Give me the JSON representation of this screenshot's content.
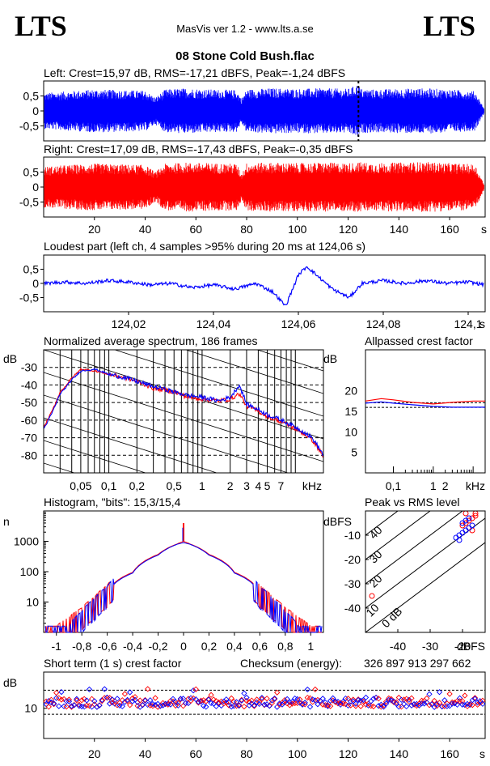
{
  "header": {
    "logo_left": "LTS",
    "logo_right": "LTS",
    "app_title": "MasVis ver 1.2 - www.lts.a.se",
    "file_name": "08 Stone Cold Bush.flac"
  },
  "colors": {
    "left": "#0000ff",
    "right": "#ff0000"
  },
  "chart_data": [
    {
      "type": "line",
      "id": "waveform-left",
      "title": "Left: Crest=15,97 dB, RMS=-17,21 dBFS, Peak=-1,24 dBFS",
      "ytick_labels": [
        "0,5",
        "0",
        "-0,5"
      ],
      "yticks": [
        0.5,
        0,
        -0.5
      ],
      "ylim": [
        -1,
        1
      ],
      "xlim": [
        0,
        174
      ],
      "peak_marker_s": 124.06,
      "envelope": {
        "x": [
          0,
          10,
          20,
          30,
          40,
          44,
          48,
          52,
          56,
          66,
          76,
          78,
          80,
          90,
          100,
          110,
          120,
          124,
          125,
          130,
          140,
          150,
          160,
          170,
          174
        ],
        "amp": [
          0.6,
          0.66,
          0.72,
          0.7,
          0.68,
          0.45,
          0.72,
          0.74,
          0.76,
          0.72,
          0.7,
          0.42,
          0.72,
          0.76,
          0.74,
          0.76,
          0.74,
          0.9,
          0.74,
          0.72,
          0.74,
          0.76,
          0.72,
          0.66,
          0.02
        ]
      }
    },
    {
      "type": "line",
      "id": "waveform-right",
      "title": "Right: Crest=17,09 dB, RMS=-17,43 dBFS, Peak=-0,35 dBFS",
      "ytick_labels": [
        "0,5",
        "0",
        "-0,5"
      ],
      "yticks": [
        0.5,
        0,
        -0.5
      ],
      "ylim": [
        -1,
        1
      ],
      "xlim": [
        0,
        174
      ],
      "xticks": [
        20,
        40,
        60,
        80,
        100,
        120,
        140,
        160
      ],
      "xtick_labels": [
        "20",
        "40",
        "60",
        "80",
        "100",
        "120",
        "140",
        "160"
      ],
      "xlabel": "s",
      "envelope": {
        "x": [
          0,
          10,
          20,
          30,
          40,
          44,
          48,
          52,
          56,
          66,
          76,
          78,
          80,
          90,
          100,
          110,
          120,
          124,
          130,
          140,
          150,
          160,
          170,
          174
        ],
        "amp": [
          0.68,
          0.74,
          0.78,
          0.76,
          0.74,
          0.5,
          0.78,
          0.8,
          0.82,
          0.8,
          0.78,
          0.45,
          0.8,
          0.82,
          0.8,
          0.82,
          0.8,
          0.84,
          0.8,
          0.82,
          0.84,
          0.8,
          0.76,
          0.02
        ]
      }
    },
    {
      "type": "line",
      "id": "loudest-part",
      "title": "Loudest part (left  ch, 4 samples >95% during 20 ms at 124,06 s)",
      "ytick_labels": [
        "0,5",
        "0",
        "-0,5"
      ],
      "yticks": [
        0.5,
        0,
        -0.5
      ],
      "ylim": [
        -1,
        1
      ],
      "xlim": [
        124.0,
        124.104
      ],
      "xticks": [
        124.02,
        124.04,
        124.06,
        124.08,
        124.1
      ],
      "xtick_labels": [
        "124,02",
        "124,04",
        "124,06",
        "124,08",
        "124,1"
      ],
      "xlabel": "s",
      "series": [
        {
          "x": [
            124.0,
            124.005,
            124.01,
            124.015,
            124.02,
            124.025,
            124.03,
            124.035,
            124.04,
            124.045,
            124.05,
            124.054,
            124.057,
            124.06,
            124.062,
            124.065,
            124.068,
            124.072,
            124.075,
            124.08,
            124.085,
            124.09,
            124.095,
            124.1,
            124.104
          ],
          "y": [
            0.0,
            0.05,
            0.0,
            0.1,
            0.05,
            -0.05,
            0.0,
            -0.15,
            -0.05,
            -0.2,
            0.0,
            -0.3,
            -0.8,
            0.3,
            0.6,
            0.2,
            -0.2,
            -0.5,
            0.0,
            0.1,
            0.0,
            0.1,
            0.0,
            0.05,
            -0.05
          ]
        }
      ]
    },
    {
      "type": "line",
      "id": "spectrum",
      "title": "Normalized average spectrum, 186 frames",
      "ylabel": "dB",
      "xlabel": "kHz",
      "xscale": "log",
      "xlim": [
        0.02,
        20
      ],
      "ylim": [
        -90,
        -20
      ],
      "yticks": [
        -30,
        -40,
        -50,
        -60,
        -70,
        -80
      ],
      "ytick_labels": [
        "-30",
        "-40",
        "-50",
        "-60",
        "-70",
        "-80"
      ],
      "xticks": [
        0.05,
        0.1,
        0.2,
        0.5,
        1,
        2,
        3,
        4,
        5,
        7
      ],
      "xtick_labels": [
        "0,05",
        "0,1",
        "0,2",
        "0,5",
        "1",
        "2",
        "3",
        "4",
        "5",
        "7"
      ],
      "series": [
        {
          "x": [
            0.02,
            0.025,
            0.03,
            0.04,
            0.05,
            0.07,
            0.1,
            0.15,
            0.2,
            0.3,
            0.5,
            0.7,
            1,
            1.5,
            2,
            2.5,
            3,
            4,
            5,
            7,
            10,
            15,
            20
          ],
          "y": [
            -65,
            -55,
            -45,
            -37,
            -32,
            -31,
            -34,
            -36,
            -38,
            -41,
            -44,
            -46,
            -47,
            -49,
            -47,
            -40,
            -51,
            -54,
            -57,
            -60,
            -64,
            -70,
            -80
          ]
        },
        {
          "x": [
            0.02,
            0.025,
            0.03,
            0.04,
            0.05,
            0.07,
            0.1,
            0.15,
            0.2,
            0.3,
            0.5,
            0.7,
            1,
            1.5,
            2,
            2.5,
            3,
            4,
            5,
            7,
            10,
            15,
            20
          ],
          "y": [
            -64,
            -54,
            -44,
            -36,
            -31,
            -32,
            -34,
            -36,
            -38,
            -42,
            -44,
            -47,
            -48,
            -49,
            -48,
            -45,
            -52,
            -55,
            -58,
            -61,
            -65,
            -71,
            -81
          ]
        }
      ]
    },
    {
      "type": "line",
      "id": "allpassed-crest",
      "title": "Allpassed crest factor",
      "ylabel": "dB",
      "xlabel": "kHz",
      "xscale": "log",
      "xlim": [
        0.02,
        20
      ],
      "ylim": [
        0,
        30
      ],
      "yticks": [
        20,
        15,
        10,
        5
      ],
      "ytick_labels": [
        "20",
        "15",
        "10",
        "5"
      ],
      "xticks": [
        0.1,
        1,
        2
      ],
      "xtick_labels": [
        "0,1",
        "1",
        "2"
      ],
      "reference_lines": [
        15.97,
        17.09
      ],
      "series": [
        {
          "x": [
            0.02,
            0.05,
            0.1,
            0.3,
            1,
            3,
            10,
            20
          ],
          "y": [
            17.0,
            17.3,
            17.0,
            16.6,
            16.2,
            16.0,
            16.0,
            16.0
          ]
        },
        {
          "x": [
            0.02,
            0.05,
            0.1,
            0.3,
            1,
            3,
            10,
            20
          ],
          "y": [
            17.5,
            18.1,
            17.8,
            17.2,
            16.8,
            17.2,
            17.5,
            17.5
          ]
        }
      ]
    },
    {
      "type": "line",
      "id": "histogram",
      "title": "Histogram, \"bits\": 15,3/15,4",
      "ylabel": "n",
      "yscale": "log",
      "xlim": [
        -1.1,
        1.1
      ],
      "ylim": [
        1,
        10000
      ],
      "xticks": [
        -1,
        -0.8,
        -0.6,
        -0.4,
        -0.2,
        0,
        0.2,
        0.4,
        0.6,
        0.8,
        1
      ],
      "xtick_labels": [
        "-1",
        "-0,8",
        "-0,6",
        "-0,4",
        "-0,2",
        "0",
        "0,2",
        "0,4",
        "0,6",
        "0,8",
        "1"
      ],
      "yticks": [
        1000,
        100,
        10
      ],
      "ytick_labels": [
        "1000",
        "100",
        "10"
      ],
      "series": [
        {
          "x": [
            -1.0,
            -0.9,
            -0.8,
            -0.7,
            -0.6,
            -0.4,
            -0.2,
            -0.05,
            0,
            0.05,
            0.2,
            0.4,
            0.6,
            0.7,
            0.8,
            0.9,
            1.0
          ],
          "y": [
            1,
            1,
            3,
            8,
            20,
            90,
            350,
            800,
            900,
            800,
            350,
            90,
            20,
            8,
            3,
            1,
            1
          ]
        },
        {
          "x": [
            -1.0,
            -0.9,
            -0.8,
            -0.7,
            -0.6,
            -0.4,
            -0.2,
            -0.05,
            0,
            0.05,
            0.2,
            0.4,
            0.6,
            0.7,
            0.8,
            0.9,
            1.0
          ],
          "y": [
            1,
            2,
            4,
            9,
            22,
            95,
            370,
            820,
            1000,
            820,
            370,
            95,
            22,
            9,
            4,
            2,
            1
          ]
        }
      ],
      "peak_at_zero": 4000
    },
    {
      "type": "scatter",
      "id": "peak-vs-rms",
      "title": "Peak vs RMS level",
      "ylabel": "dBFS",
      "xlabel": "dBFS",
      "xlim": [
        -50,
        -13
      ],
      "ylim": [
        -50,
        0
      ],
      "xticks": [
        -40,
        -30,
        -20
      ],
      "xtick_labels": [
        "-40",
        "-30",
        "-20"
      ],
      "yticks": [
        -10,
        -20,
        -30,
        -40
      ],
      "ytick_labels": [
        "-10",
        "-20",
        "-30",
        "-40"
      ],
      "crest_lines": [
        0,
        10,
        20,
        30,
        40
      ],
      "crest_labels": [
        "0 dB",
        "10",
        "20",
        "30",
        "40"
      ],
      "series": [
        {
          "x": [
            -21,
            -20,
            -19,
            -18,
            -17,
            -20,
            -22,
            -19,
            -18,
            -21
          ],
          "y": [
            -10,
            -9,
            -8,
            -7,
            -6,
            -5,
            -11,
            -4,
            -3,
            -12
          ]
        },
        {
          "x": [
            -20,
            -19,
            -18,
            -17,
            -16,
            -18,
            -19,
            -17,
            -16,
            -48
          ],
          "y": [
            -6,
            -5,
            -4,
            -3,
            -2,
            -7,
            -1,
            -8,
            -1,
            -35
          ]
        }
      ]
    },
    {
      "type": "scatter",
      "id": "short-term-crest",
      "title": "Short term (1 s) crest factor",
      "checksum_label": "Checksum (energy):",
      "checksum_value": "326 897 913 297 662",
      "ylabel": "dB",
      "xlabel": "s",
      "xlim": [
        0,
        174
      ],
      "ylim": [
        0,
        22
      ],
      "yticks": [
        10
      ],
      "ytick_labels": [
        "10"
      ],
      "reference_lines": [
        8,
        16
      ],
      "xticks": [
        20,
        40,
        60,
        80,
        100,
        120,
        140,
        160
      ],
      "xtick_labels": [
        "20",
        "40",
        "60",
        "80",
        "100",
        "120",
        "140",
        "160"
      ],
      "base": 12,
      "spread": 1.6
    }
  ]
}
